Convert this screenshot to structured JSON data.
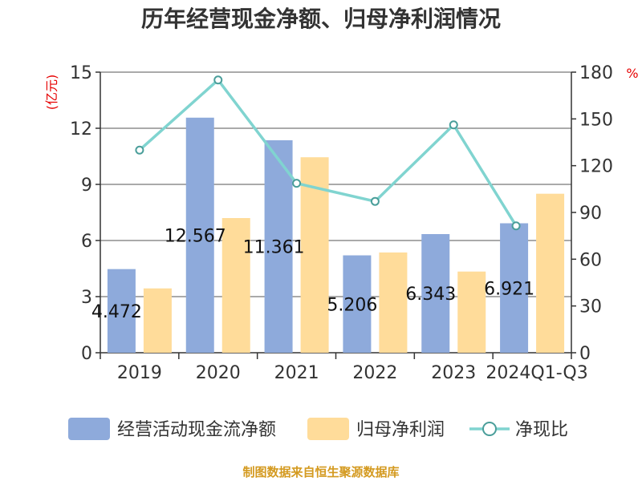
{
  "chart_data": {
    "type": "bar",
    "title": "历年经营现金净额、归母净利润情况",
    "y_left_unit": "(亿元)",
    "y_right_unit": "%",
    "categories": [
      "2019",
      "2020",
      "2021",
      "2022",
      "2023",
      "2024Q1-Q3"
    ],
    "y_left_range": [
      0,
      15
    ],
    "y_left_ticks": [
      "0",
      "3",
      "6",
      "9",
      "12",
      "15"
    ],
    "y_right_range": [
      0,
      180
    ],
    "y_right_ticks": [
      "0",
      "30",
      "60",
      "90",
      "120",
      "150",
      "180"
    ],
    "grid": true,
    "legend_position": "bottom",
    "series": [
      {
        "name": "经营活动现金流净额",
        "type": "bar",
        "axis": "left",
        "color": "#8eaadb",
        "values": [
          4.472,
          12.567,
          11.361,
          5.206,
          6.343,
          6.921
        ],
        "labels": [
          "4.472",
          "12.567",
          "11.361",
          "5.206",
          "6.343",
          "6.921"
        ]
      },
      {
        "name": "归母净利润",
        "type": "bar",
        "axis": "left",
        "color": "#ffdc9a",
        "values": [
          3.44,
          7.2,
          10.45,
          5.36,
          4.34,
          8.5
        ]
      },
      {
        "name": "净现比",
        "type": "line",
        "axis": "right",
        "color": "#80d4d0",
        "values": [
          130,
          175,
          108.7,
          97.1,
          146.2,
          81.4
        ]
      }
    ],
    "source": "制图数据来自恒生聚源数据库"
  }
}
